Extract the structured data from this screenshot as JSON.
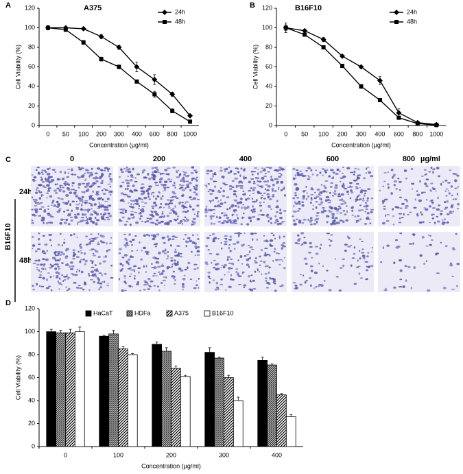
{
  "chart_data": [
    {
      "type": "line",
      "panel_label": "A",
      "title": "A375",
      "x_label": "Concentration (µg/ml)",
      "y_label": "Cell Viability (%)",
      "categories": [
        "0",
        "50",
        "100",
        "200",
        "300",
        "400",
        "600",
        "800",
        "1000"
      ],
      "series": [
        {
          "name": "24h",
          "color": "#000000",
          "marker": "diamond",
          "values": [
            100,
            100,
            99,
            91,
            80,
            60,
            47,
            32,
            10
          ],
          "errors": [
            2,
            1,
            1,
            2,
            2,
            5,
            5,
            2,
            1
          ]
        },
        {
          "name": "48h",
          "color": "#000000",
          "marker": "square",
          "values": [
            100,
            98,
            85,
            68,
            60,
            45,
            32,
            15,
            4
          ],
          "errors": [
            2,
            1,
            2,
            2,
            2,
            1,
            3,
            2,
            1
          ]
        }
      ],
      "ylim": [
        0,
        120
      ],
      "yticks": [
        0,
        20,
        40,
        60,
        80,
        100,
        120
      ],
      "legend": "upper right"
    },
    {
      "type": "line",
      "panel_label": "B",
      "title": "B16F10",
      "x_label": "Concentration (µg/ml)",
      "y_label": "Cell Viability (%)",
      "categories": [
        "0",
        "50",
        "100",
        "200",
        "300",
        "400",
        "600",
        "800",
        "1000"
      ],
      "series": [
        {
          "name": "24h",
          "color": "#000000",
          "marker": "diamond",
          "values": [
            100,
            97,
            88,
            71,
            60,
            46,
            13,
            3,
            1
          ],
          "errors": [
            5,
            1,
            2,
            1,
            1,
            4,
            4,
            1,
            1
          ]
        },
        {
          "name": "48h",
          "color": "#000000",
          "marker": "square",
          "values": [
            100,
            93,
            80,
            61,
            40,
            26,
            8,
            2,
            0.5
          ],
          "errors": [
            3,
            1,
            1,
            1,
            2,
            1,
            1,
            1,
            0.5
          ]
        }
      ],
      "ylim": [
        0,
        120
      ],
      "yticks": [
        0,
        20,
        40,
        60,
        80,
        100,
        120
      ],
      "legend": "upper right"
    },
    {
      "type": "bar",
      "panel_label": "D",
      "x_label": "Concentration (µg/ml)",
      "y_label": "Cell Viability (%)",
      "categories": [
        "0",
        "100",
        "200",
        "300",
        "400"
      ],
      "series": [
        {
          "name": "HaCaT",
          "color": "#000000",
          "pattern": "solid",
          "values": [
            100,
            96,
            89,
            82,
            75
          ],
          "errors": [
            2,
            1,
            2,
            4,
            3
          ]
        },
        {
          "name": "HDFa",
          "color": "#000000",
          "pattern": "crosshatch",
          "values": [
            99,
            98,
            83,
            77,
            71
          ],
          "errors": [
            2,
            3,
            3,
            1,
            1
          ]
        },
        {
          "name": "A375",
          "color": "#000000",
          "pattern": "diagonal",
          "values": [
            99,
            85,
            68,
            60,
            45
          ],
          "errors": [
            3,
            2,
            2,
            2,
            1
          ]
        },
        {
          "name": "B16F10",
          "color": "#000000",
          "pattern": "none",
          "values": [
            100,
            80,
            61,
            40,
            26
          ],
          "errors": [
            4,
            1,
            1,
            3,
            2
          ]
        }
      ],
      "ylim": [
        0,
        120
      ],
      "yticks": [
        0,
        20,
        40,
        60,
        80,
        100,
        120
      ],
      "legend": "upper center"
    }
  ],
  "image_panel": {
    "panel_label": "C",
    "cell_line": "B16F10",
    "column_labels": [
      "0",
      "200",
      "400",
      "600",
      "800"
    ],
    "unit": "µg/ml",
    "row_labels": [
      "24h",
      "48h"
    ]
  }
}
